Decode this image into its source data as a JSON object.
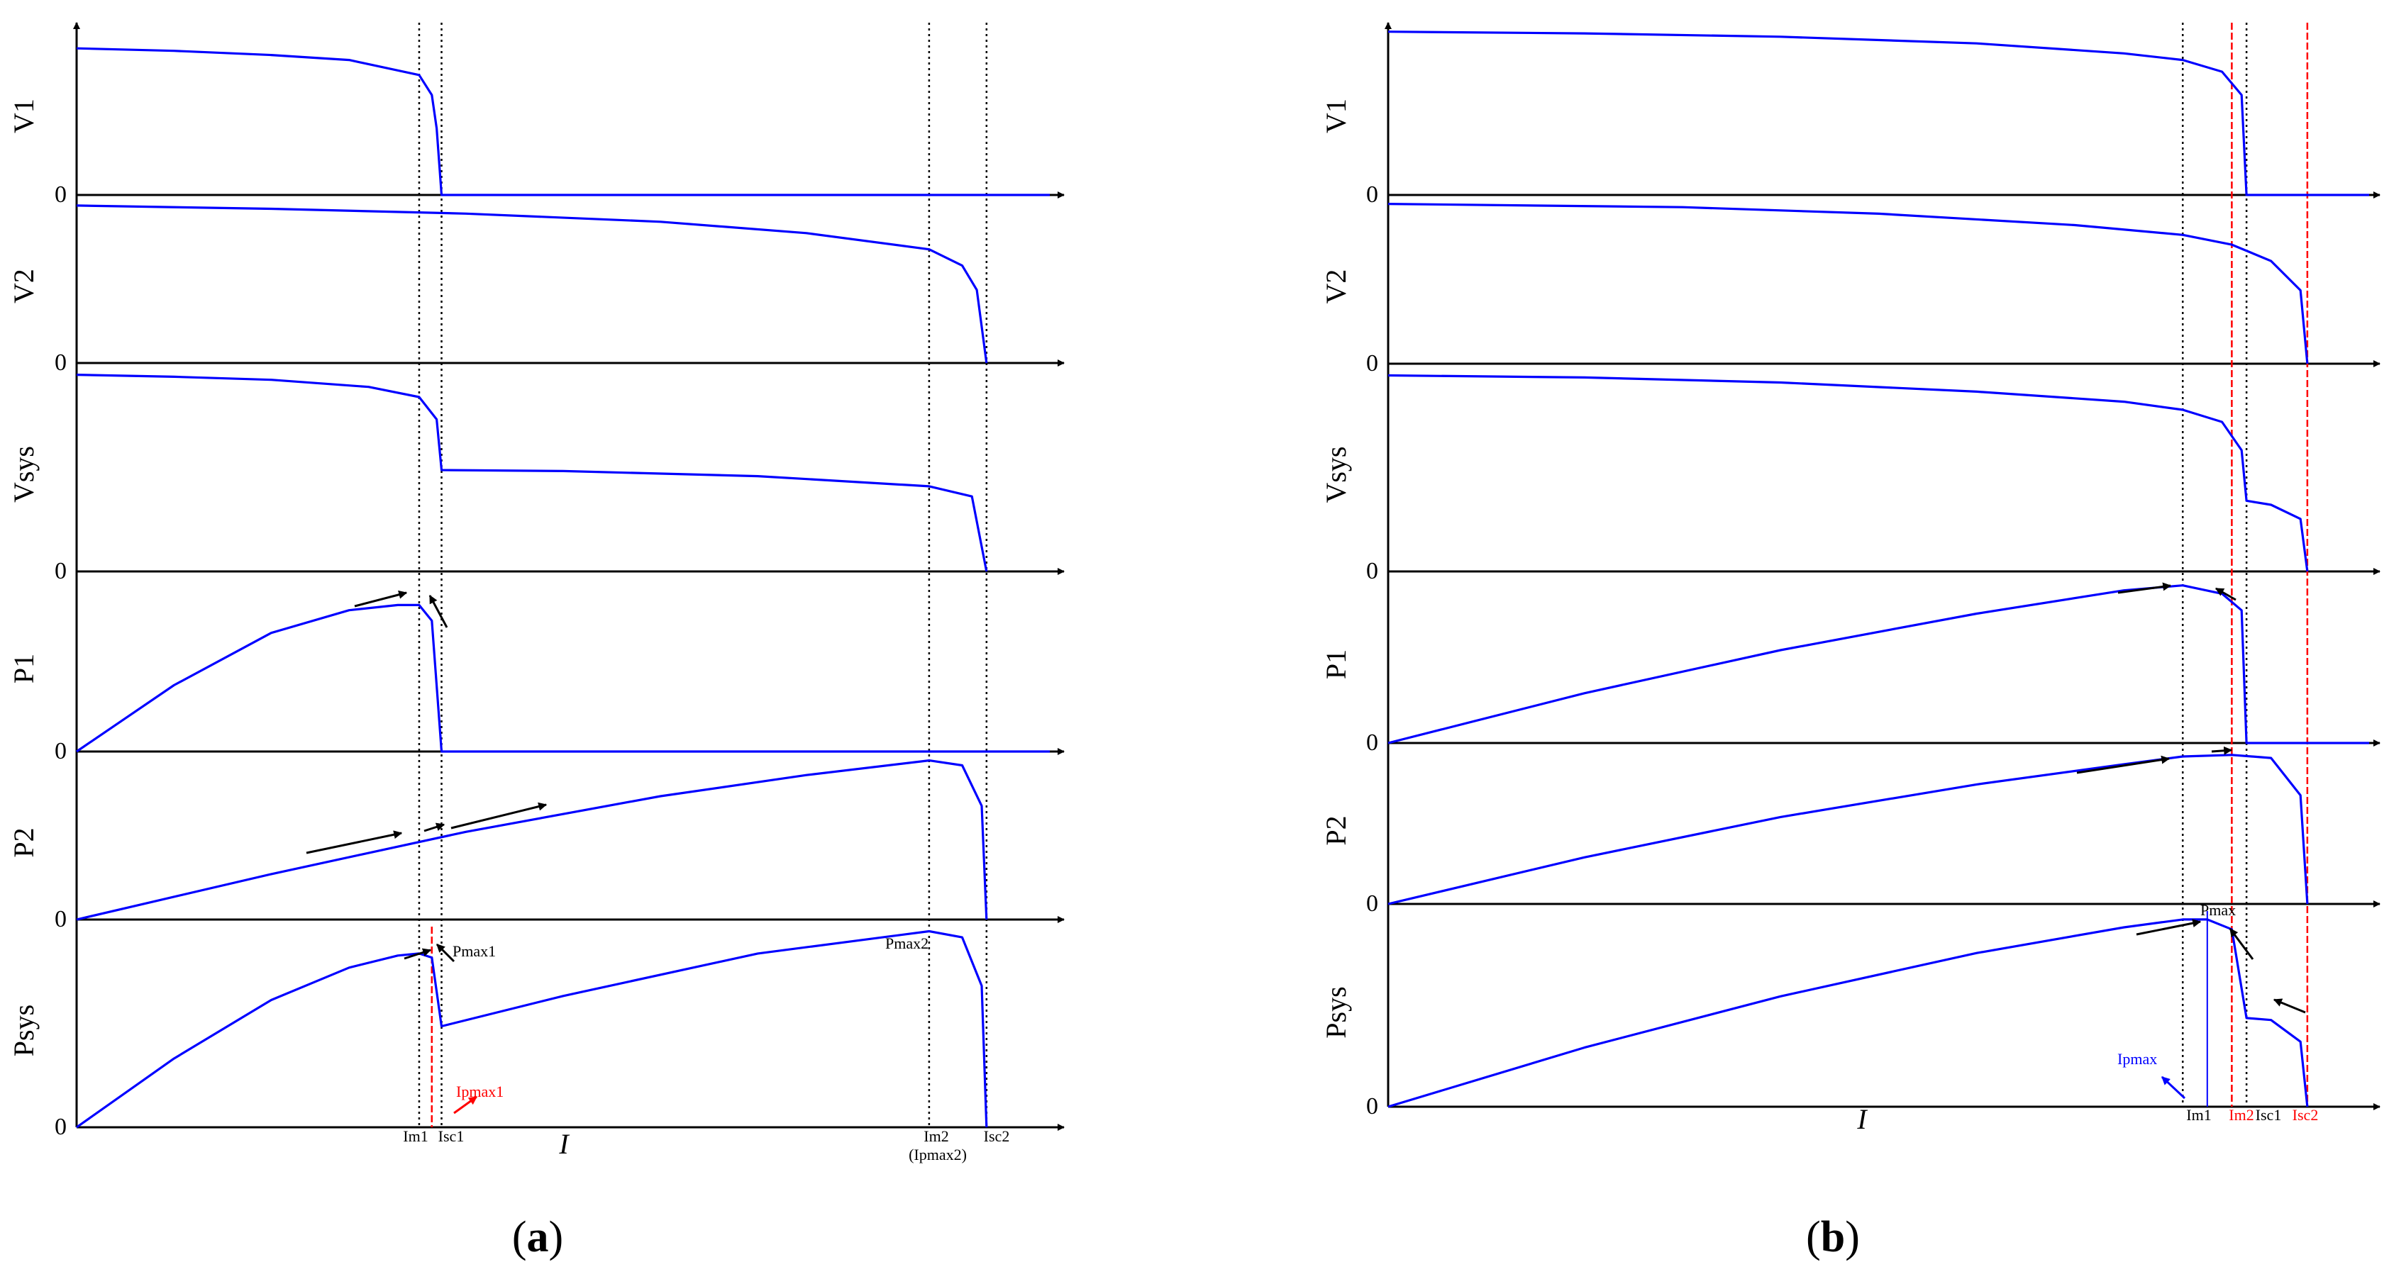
{
  "figure": {
    "panel_a": {
      "caption_open": "(",
      "caption_letter": "a",
      "caption_close": ")",
      "x_axis_name": "I",
      "row_labels": [
        "V1",
        "V2",
        "Vsys",
        "P1",
        "P2",
        "Psys"
      ],
      "zero_label": "0",
      "markers": [
        {
          "text": "Im1",
          "color": "#000000"
        },
        {
          "text": "Isc1",
          "color": "#000000"
        },
        {
          "text": "Im2",
          "color": "#000000"
        },
        {
          "text": "(Ipmax2)",
          "color": "#000000"
        },
        {
          "text": "Isc2",
          "color": "#000000"
        }
      ],
      "annotations": [
        {
          "text": "Pmax1",
          "color": "#000000"
        },
        {
          "text": "Pmax2",
          "color": "#000000"
        },
        {
          "text": "Ipmax1",
          "color": "#ff0000"
        }
      ]
    },
    "panel_b": {
      "caption_open": "(",
      "caption_letter": "b",
      "caption_close": ")",
      "x_axis_name": "I",
      "row_labels": [
        "V1",
        "V2",
        "Vsys",
        "P1",
        "P2",
        "Psys"
      ],
      "zero_label": "0",
      "markers": [
        {
          "text": "Im1",
          "color": "#000000"
        },
        {
          "text": "Im2",
          "color": "#ff0000"
        },
        {
          "text": "Isc1",
          "color": "#000000"
        },
        {
          "text": "Isc2",
          "color": "#ff0000"
        }
      ],
      "annotations": [
        {
          "text": "Pmax",
          "color": "#000000"
        },
        {
          "text": "Ipmax",
          "color": "#0000ff"
        }
      ]
    }
  },
  "colors": {
    "curve": "#0000ff",
    "axis": "#000000",
    "guide_black": "#000000",
    "guide_red": "#ff0000",
    "background": "#ffffff"
  },
  "chart_data": [
    {
      "type": "line",
      "panel": "a",
      "x_unit": "fraction of displayed current axis",
      "y_unit": "fraction of each row's positive range",
      "guides": [
        {
          "label": "Im1",
          "x": 0.352,
          "style": "dotted",
          "color": "#000000"
        },
        {
          "label": "Isc1",
          "x": 0.375,
          "style": "dotted",
          "color": "#000000"
        },
        {
          "label": "Im2 (Ipmax2)",
          "x": 0.876,
          "style": "dotted",
          "color": "#000000"
        },
        {
          "label": "Isc2",
          "x": 0.935,
          "style": "dotted",
          "color": "#000000"
        },
        {
          "label": "Ipmax1",
          "x": 0.365,
          "style": "dashed",
          "color": "#ff0000",
          "rows": [
            "Psys"
          ]
        }
      ],
      "rows": [
        {
          "label": "V1",
          "points": [
            [
              0.0,
              0.88
            ],
            [
              0.1,
              0.865
            ],
            [
              0.2,
              0.84
            ],
            [
              0.28,
              0.81
            ],
            [
              0.352,
              0.72
            ],
            [
              0.365,
              0.6
            ],
            [
              0.37,
              0.4
            ],
            [
              0.375,
              0.0
            ],
            [
              1.0,
              0.0
            ]
          ]
        },
        {
          "label": "V2",
          "points": [
            [
              0.0,
              0.97
            ],
            [
              0.2,
              0.95
            ],
            [
              0.4,
              0.92
            ],
            [
              0.6,
              0.87
            ],
            [
              0.75,
              0.8
            ],
            [
              0.876,
              0.7
            ],
            [
              0.91,
              0.6
            ],
            [
              0.925,
              0.45
            ],
            [
              0.935,
              0.0
            ]
          ]
        },
        {
          "label": "Vsys",
          "points": [
            [
              0.0,
              0.97
            ],
            [
              0.1,
              0.96
            ],
            [
              0.2,
              0.945
            ],
            [
              0.3,
              0.91
            ],
            [
              0.352,
              0.86
            ],
            [
              0.37,
              0.75
            ],
            [
              0.375,
              0.5
            ],
            [
              0.5,
              0.495
            ],
            [
              0.7,
              0.47
            ],
            [
              0.876,
              0.42
            ],
            [
              0.92,
              0.37
            ],
            [
              0.935,
              0.0
            ]
          ]
        },
        {
          "label": "P1",
          "points": [
            [
              0.0,
              0.0
            ],
            [
              0.1,
              0.38
            ],
            [
              0.2,
              0.68
            ],
            [
              0.28,
              0.81
            ],
            [
              0.33,
              0.84
            ],
            [
              0.352,
              0.84
            ],
            [
              0.365,
              0.75
            ],
            [
              0.375,
              0.0
            ],
            [
              1.0,
              0.0
            ]
          ]
        },
        {
          "label": "P2",
          "points": [
            [
              0.0,
              0.0
            ],
            [
              0.2,
              0.28
            ],
            [
              0.4,
              0.54
            ],
            [
              0.6,
              0.76
            ],
            [
              0.75,
              0.89
            ],
            [
              0.876,
              0.98
            ],
            [
              0.91,
              0.95
            ],
            [
              0.93,
              0.7
            ],
            [
              0.935,
              0.0
            ]
          ]
        },
        {
          "label": "Psys",
          "points": [
            [
              0.0,
              0.0
            ],
            [
              0.1,
              0.34
            ],
            [
              0.2,
              0.63
            ],
            [
              0.28,
              0.79
            ],
            [
              0.33,
              0.85
            ],
            [
              0.352,
              0.86
            ],
            [
              0.365,
              0.84
            ],
            [
              0.375,
              0.5
            ],
            [
              0.5,
              0.65
            ],
            [
              0.7,
              0.86
            ],
            [
              0.876,
              0.97
            ],
            [
              0.91,
              0.94
            ],
            [
              0.93,
              0.7
            ],
            [
              0.935,
              0.0
            ]
          ]
        }
      ]
    },
    {
      "type": "line",
      "panel": "b",
      "x_unit": "fraction of displayed current axis",
      "y_unit": "fraction of each row's positive range",
      "guides": [
        {
          "label": "Im1",
          "x": 0.81,
          "style": "dotted",
          "color": "#000000"
        },
        {
          "label": "Im2",
          "x": 0.86,
          "style": "dashed",
          "color": "#ff0000"
        },
        {
          "label": "Isc1",
          "x": 0.875,
          "style": "dotted",
          "color": "#000000"
        },
        {
          "label": "Isc2",
          "x": 0.937,
          "style": "dashed",
          "color": "#ff0000"
        },
        {
          "label": "Ipmax",
          "x": 0.835,
          "style": "solid",
          "color": "#0000ff",
          "rows": [
            "Psys"
          ]
        }
      ],
      "rows": [
        {
          "label": "V1",
          "points": [
            [
              0.0,
              0.98
            ],
            [
              0.2,
              0.97
            ],
            [
              0.4,
              0.95
            ],
            [
              0.6,
              0.91
            ],
            [
              0.75,
              0.85
            ],
            [
              0.81,
              0.81
            ],
            [
              0.85,
              0.74
            ],
            [
              0.87,
              0.6
            ],
            [
              0.875,
              0.0
            ],
            [
              1.0,
              0.0
            ]
          ]
        },
        {
          "label": "V2",
          "points": [
            [
              0.0,
              0.98
            ],
            [
              0.3,
              0.96
            ],
            [
              0.5,
              0.92
            ],
            [
              0.7,
              0.85
            ],
            [
              0.81,
              0.79
            ],
            [
              0.86,
              0.73
            ],
            [
              0.9,
              0.63
            ],
            [
              0.93,
              0.45
            ],
            [
              0.937,
              0.0
            ]
          ]
        },
        {
          "label": "Vsys",
          "points": [
            [
              0.0,
              0.97
            ],
            [
              0.2,
              0.96
            ],
            [
              0.4,
              0.935
            ],
            [
              0.6,
              0.89
            ],
            [
              0.75,
              0.84
            ],
            [
              0.81,
              0.8
            ],
            [
              0.85,
              0.74
            ],
            [
              0.87,
              0.6
            ],
            [
              0.875,
              0.35
            ],
            [
              0.9,
              0.33
            ],
            [
              0.93,
              0.26
            ],
            [
              0.937,
              0.0
            ]
          ]
        },
        {
          "label": "P1",
          "points": [
            [
              0.0,
              0.0
            ],
            [
              0.2,
              0.3
            ],
            [
              0.4,
              0.56
            ],
            [
              0.6,
              0.78
            ],
            [
              0.75,
              0.92
            ],
            [
              0.81,
              0.95
            ],
            [
              0.85,
              0.9
            ],
            [
              0.87,
              0.8
            ],
            [
              0.875,
              0.0
            ],
            [
              1.0,
              0.0
            ]
          ]
        },
        {
          "label": "P2",
          "points": [
            [
              0.0,
              0.0
            ],
            [
              0.2,
              0.3
            ],
            [
              0.4,
              0.56
            ],
            [
              0.6,
              0.77
            ],
            [
              0.75,
              0.9
            ],
            [
              0.81,
              0.95
            ],
            [
              0.86,
              0.96
            ],
            [
              0.9,
              0.94
            ],
            [
              0.93,
              0.7
            ],
            [
              0.937,
              0.0
            ]
          ]
        },
        {
          "label": "Psys",
          "points": [
            [
              0.0,
              0.0
            ],
            [
              0.2,
              0.3
            ],
            [
              0.4,
              0.56
            ],
            [
              0.6,
              0.78
            ],
            [
              0.75,
              0.91
            ],
            [
              0.81,
              0.95
            ],
            [
              0.835,
              0.95
            ],
            [
              0.86,
              0.9
            ],
            [
              0.875,
              0.45
            ],
            [
              0.9,
              0.44
            ],
            [
              0.93,
              0.33
            ],
            [
              0.937,
              0.0
            ]
          ]
        }
      ]
    }
  ]
}
